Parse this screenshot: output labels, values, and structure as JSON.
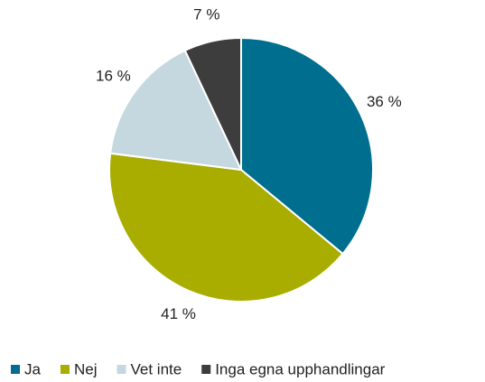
{
  "chart_data": {
    "type": "pie",
    "categories": [
      "Ja",
      "Nej",
      "Vet inte",
      "Inga egna upphandlingar"
    ],
    "values": [
      36,
      41,
      16,
      7
    ],
    "value_labels": [
      "36 %",
      "41 %",
      "16 %",
      "7 %"
    ],
    "colors": [
      "#006f8f",
      "#a8ad00",
      "#c5d8df",
      "#3d3d3d"
    ],
    "legend": "bottom"
  }
}
